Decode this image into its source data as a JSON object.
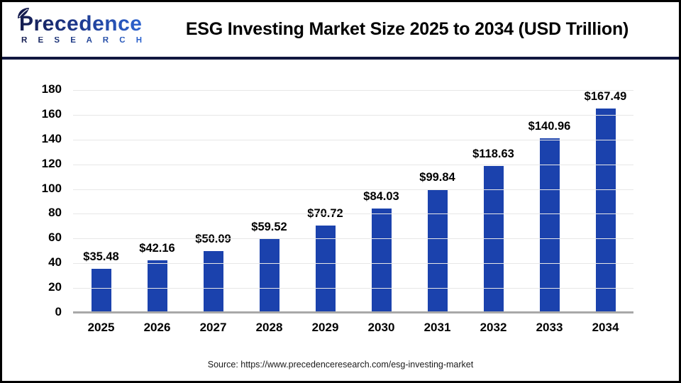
{
  "header": {
    "logo": {
      "name": "Precedence",
      "subname": "R E S E A R C H"
    },
    "title": "ESG Investing Market Size 2025 to 2034 (USD Trillion)"
  },
  "footer": {
    "source": "Source: https://www.precedenceresearch.com/esg-investing-market"
  },
  "colors": {
    "bar": "#1b42ad",
    "divider": "#11173f",
    "gridline": "#e7e7e7",
    "baseline": "#a8a8a8",
    "logo_dark": "#141b4e",
    "logo_light": "#2f6bdc"
  },
  "chart_data": {
    "type": "bar",
    "title": "ESG Investing Market Size 2025 to 2034 (USD Trillion)",
    "categories": [
      "2025",
      "2026",
      "2027",
      "2028",
      "2029",
      "2030",
      "2031",
      "2032",
      "2033",
      "2034"
    ],
    "values": [
      35.48,
      42.16,
      50.09,
      59.52,
      70.72,
      84.03,
      99.84,
      118.63,
      140.96,
      167.49
    ],
    "labels": [
      "$35.48",
      "$42.16",
      "$50.09",
      "$59.52",
      "$70.72",
      "$84.03",
      "$99.84",
      "$118.63",
      "$140.96",
      "$167.49"
    ],
    "xlabel": "",
    "ylabel": "",
    "unit": "USD Trillion",
    "ylim": [
      0,
      180
    ],
    "ytick_step": 20,
    "grid": true,
    "legend": "none"
  }
}
